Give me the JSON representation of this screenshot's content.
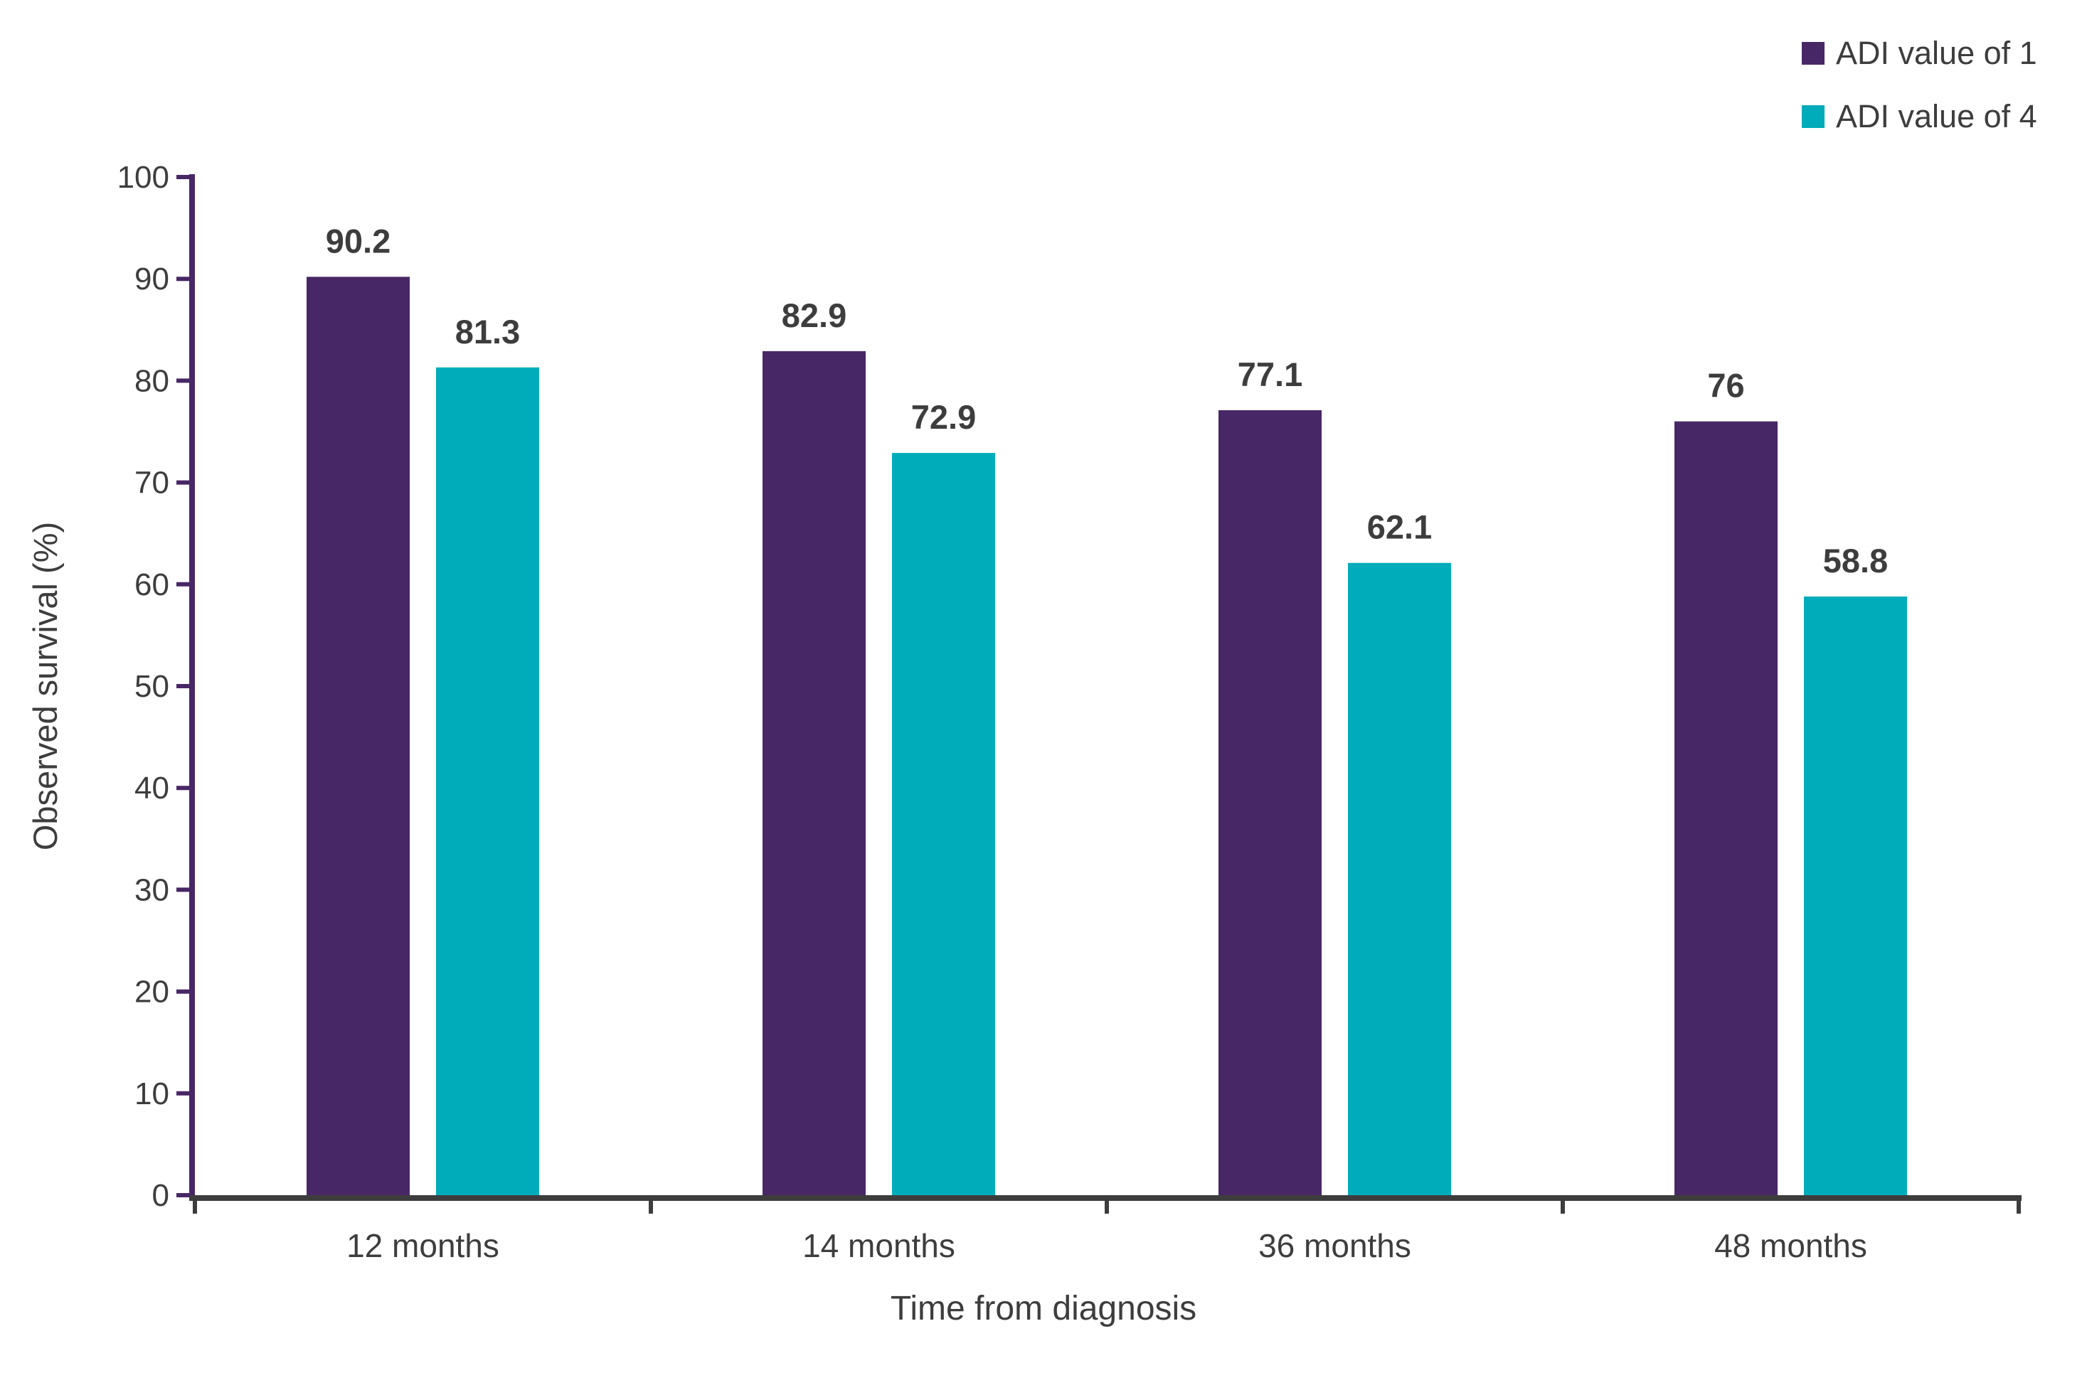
{
  "page": {
    "background": "#ffffff"
  },
  "chart_data": {
    "type": "bar",
    "categories": [
      "12 months",
      "14 months",
      "36 months",
      "48 months"
    ],
    "series": [
      {
        "name": "ADI value of 1",
        "color": "#482766",
        "values": [
          90.2,
          82.9,
          77.1,
          76
        ]
      },
      {
        "name": "ADI value of 4",
        "color": "#00ACB9",
        "values": [
          81.3,
          72.9,
          62.1,
          58.8
        ]
      }
    ],
    "title": "",
    "xlabel": "Time from diagnosis",
    "ylabel": "Observed survival (%)",
    "ylim": [
      0,
      100
    ],
    "yticks": [
      0,
      10,
      20,
      30,
      40,
      50,
      60,
      70,
      80,
      90,
      100
    ],
    "grid": false,
    "bar_value_labels_shown": true,
    "legend_position": "top-right",
    "colors": {
      "y_axis_line": "#482766",
      "x_axis_line": "#3D3D3D",
      "text": "#3D3D3D"
    }
  }
}
